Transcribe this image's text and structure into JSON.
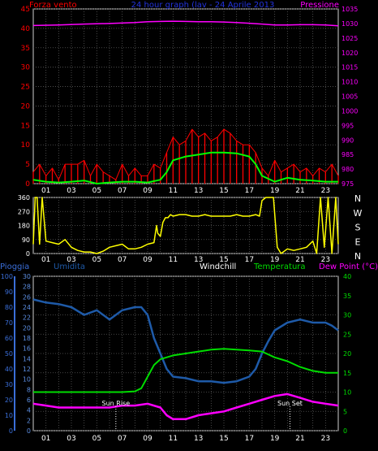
{
  "header": {
    "left_label": "Forza vento",
    "center_title": "24 hour graph (lav - 24 Aprile 2013",
    "right_label": "Pressione"
  },
  "lower_header": {
    "pioggia": "Pioggia",
    "umidita": "Umidita",
    "windchill": "Windchill",
    "temperatura": "Temperatura",
    "dewpoint": "Dew Point (°C)"
  },
  "hour_labels": [
    "01",
    "03",
    "05",
    "07",
    "09",
    "11",
    "13",
    "15",
    "17",
    "19",
    "21",
    "23"
  ],
  "compass_labels": [
    "N",
    "W",
    "S",
    "E",
    "N"
  ],
  "annotations": {
    "sunrise": "Sun Rise",
    "sunset": "Sun Set"
  },
  "colors": {
    "wind": "#ff0000",
    "wind_avg": "#00ff00",
    "pressure": "#ff00ff",
    "direction": "#ffff00",
    "humidity": "#1e5aa8",
    "temperature": "#00dd00",
    "dewpoint": "#ff00ff",
    "rain_axis": "#3a6ed8",
    "grid": "#5a5a5a"
  },
  "chart_data": [
    {
      "type": "line",
      "title": "24 hour graph (lav - 24 Aprile 2013",
      "x_unit": "hour",
      "xlim": [
        0,
        24
      ],
      "left_axis": {
        "label": "Forza vento",
        "ylim": [
          0,
          45
        ],
        "ticks": [
          0,
          5,
          10,
          15,
          20,
          25,
          30,
          35,
          40,
          45
        ]
      },
      "right_axis": {
        "label": "Pressione",
        "ylim": [
          975,
          1035
        ],
        "ticks": [
          975,
          980,
          985,
          990,
          995,
          1000,
          1005,
          1010,
          1015,
          1020,
          1025,
          1030,
          1035
        ]
      },
      "series": [
        {
          "axis": "right",
          "x": [
            0,
            2,
            4,
            6,
            8,
            9,
            10,
            11,
            12,
            13,
            14,
            15,
            16,
            17,
            18,
            19,
            20,
            21,
            22,
            23,
            24
          ],
          "values": [
            1029.3,
            1029.5,
            1029.8,
            1030.0,
            1030.3,
            1030.6,
            1030.7,
            1030.8,
            1030.7,
            1030.6,
            1030.6,
            1030.5,
            1030.3,
            1030.1,
            1029.8,
            1029.5,
            1029.5,
            1029.6,
            1029.6,
            1029.5,
            1029.2
          ]
        },
        {
          "x": [
            0,
            1,
            2,
            3,
            4,
            5,
            6,
            7,
            8,
            9,
            10,
            10.5,
            11,
            12,
            13,
            14,
            15,
            16,
            17,
            17.5,
            18,
            19,
            20,
            21,
            22,
            23,
            24
          ],
          "values": [
            1,
            0.5,
            0.3,
            0.5,
            0.8,
            0,
            0.3,
            0.5,
            0.5,
            0.3,
            1,
            3,
            6,
            7,
            7.5,
            8,
            8,
            7.8,
            7,
            5,
            2,
            0.5,
            1.5,
            1,
            0.8,
            0.5,
            0.5
          ]
        },
        {
          "x": [
            0,
            0.5,
            1,
            1.5,
            2,
            2.5,
            3,
            3.5,
            4,
            4.5,
            5,
            5.5,
            6,
            6.5,
            7,
            7.5,
            8,
            8.5,
            9,
            9.5,
            10,
            10.5,
            11,
            11.5,
            12,
            12.5,
            13,
            13.5,
            14,
            14.5,
            15,
            15.5,
            16,
            16.5,
            17,
            17.5,
            18,
            18.5,
            19,
            19.5,
            20,
            20.5,
            21,
            21.5,
            22,
            22.5,
            23,
            23.5,
            24
          ],
          "values": [
            3,
            5,
            2,
            4,
            1,
            5,
            5,
            5,
            6,
            2,
            5,
            3,
            2,
            1,
            5,
            2,
            4,
            2,
            2,
            5,
            4,
            8,
            12,
            10,
            11,
            14,
            12,
            13,
            11,
            12,
            14,
            13,
            11,
            10,
            10,
            8,
            4,
            2,
            6,
            3,
            4,
            5,
            3,
            4,
            2,
            4,
            3,
            5,
            2
          ]
        }
      ]
    },
    {
      "type": "line",
      "x_unit": "hour",
      "xlim": [
        0,
        24
      ],
      "left_axis": {
        "ylim": [
          0,
          360
        ],
        "ticks": [
          0,
          90,
          180,
          270,
          360
        ]
      },
      "right_axis": {
        "ticks": [
          "N",
          "E",
          "S",
          "W",
          "N"
        ]
      },
      "series": [
        {
          "x": [
            0,
            0.15,
            0.3,
            0.5,
            0.7,
            1,
            1.5,
            2,
            2.5,
            3,
            3.5,
            4,
            4.5,
            5,
            5.5,
            6,
            6.5,
            7,
            7.5,
            8,
            8.5,
            9,
            9.5,
            9.7,
            9.8,
            10,
            10.2,
            10.4,
            10.6,
            10.8,
            11,
            11.5,
            12,
            12.5,
            13,
            13.5,
            14,
            14.5,
            15,
            15.5,
            16,
            16.5,
            17,
            17.5,
            17.8,
            18,
            18.3,
            18.6,
            18.9,
            19.2,
            19.5,
            20,
            20.5,
            21,
            21.5,
            22,
            22.3,
            22.6,
            22.9,
            23.2,
            23.5,
            23.8,
            24
          ],
          "values": [
            60,
            360,
            360,
            60,
            360,
            80,
            70,
            60,
            90,
            40,
            20,
            10,
            10,
            0,
            15,
            40,
            50,
            60,
            30,
            30,
            40,
            60,
            70,
            180,
            130,
            110,
            200,
            230,
            230,
            250,
            240,
            250,
            250,
            240,
            240,
            250,
            240,
            240,
            240,
            240,
            250,
            240,
            240,
            250,
            240,
            340,
            360,
            360,
            360,
            40,
            0,
            30,
            20,
            30,
            40,
            80,
            0,
            360,
            40,
            360,
            0,
            360,
            60
          ]
        }
      ]
    },
    {
      "type": "line",
      "x_unit": "hour",
      "xlim": [
        0,
        24
      ],
      "axes": {
        "rain": {
          "label": "Pioggia",
          "ylim": [
            0,
            100
          ],
          "ticks": [
            0,
            10,
            20,
            30,
            40,
            50,
            60,
            70,
            80,
            90,
            100
          ]
        },
        "humidity": {
          "label": "Umidita",
          "ylim": [
            0,
            30
          ],
          "ticks": [
            0,
            2,
            4,
            6,
            8,
            10,
            12,
            14,
            16,
            18,
            20,
            22,
            24,
            26,
            28,
            30
          ]
        },
        "temperature": {
          "label": "Temperatura",
          "ylim": [
            0,
            40
          ],
          "ticks": [
            0,
            5,
            10,
            15,
            20,
            25,
            30,
            35,
            40
          ]
        }
      },
      "annotations": [
        {
          "label": "Sun Rise",
          "x": 6.5
        },
        {
          "label": "Sun Set",
          "x": 20.2
        }
      ],
      "series": [
        {
          "name": "Umidita",
          "x": [
            0,
            1,
            2,
            3,
            4,
            5,
            6,
            7,
            8,
            8.5,
            9,
            9.5,
            10,
            10.5,
            11,
            12,
            13,
            14,
            15,
            16,
            17,
            17.5,
            18,
            18.5,
            19,
            20,
            21,
            22,
            23,
            23.5,
            24
          ],
          "values": [
            85,
            83,
            82,
            80,
            75,
            78,
            72,
            78,
            80,
            80,
            75,
            60,
            50,
            40,
            35,
            34,
            32,
            32,
            31,
            32,
            35,
            40,
            50,
            58,
            65,
            70,
            72,
            70,
            70,
            68,
            65
          ]
        },
        {
          "name": "Temperatura",
          "x": [
            0,
            1,
            2,
            3,
            4,
            5,
            6,
            7,
            8,
            8.5,
            9,
            9.5,
            10,
            11,
            12,
            13,
            14,
            15,
            16,
            17,
            18,
            19,
            20,
            21,
            22,
            23,
            24
          ],
          "values": [
            10,
            10,
            10,
            10,
            10,
            10,
            10,
            10,
            10.2,
            11,
            14,
            17,
            18.5,
            19.5,
            20,
            20.5,
            21,
            21.2,
            21,
            20.8,
            20.5,
            19,
            18,
            16.5,
            15.5,
            15,
            15
          ]
        },
        {
          "name": "Dew Point (°C)",
          "x": [
            0,
            1,
            2,
            3,
            4,
            5,
            6,
            7,
            8,
            9,
            10,
            10.5,
            11,
            12,
            13,
            14,
            15,
            16,
            17,
            18,
            19,
            20,
            21,
            22,
            23,
            24
          ],
          "values": [
            7,
            6.5,
            6,
            6,
            6,
            6,
            6,
            6.5,
            6.5,
            7,
            6,
            4,
            3,
            3,
            4,
            4.5,
            5,
            6,
            7,
            8,
            9,
            9.5,
            8.5,
            7.5,
            7,
            6.5
          ]
        }
      ]
    }
  ]
}
